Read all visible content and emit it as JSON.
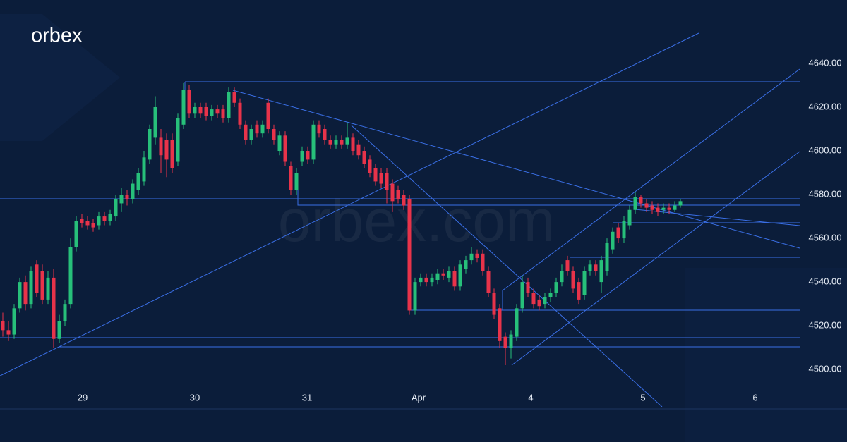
{
  "logo": "orbex",
  "watermark": "orbex.com",
  "chart_data": {
    "type": "candlestick",
    "x": [
      0,
      1,
      2,
      3,
      4,
      5,
      6,
      7,
      8,
      9,
      10,
      11,
      12,
      13,
      14,
      15,
      16,
      17,
      18,
      19,
      20,
      21,
      22,
      23,
      24,
      25,
      26,
      27,
      28,
      29,
      30,
      31,
      32,
      33,
      34,
      35,
      36,
      37,
      38,
      39,
      40,
      41,
      42,
      43,
      44,
      45,
      46,
      47,
      48,
      49,
      50,
      51,
      52,
      53,
      54,
      55,
      56,
      57,
      58,
      59,
      60,
      61,
      62,
      63,
      64,
      65,
      66,
      67,
      68,
      69,
      70,
      71,
      72,
      73,
      74,
      75,
      76,
      77,
      78,
      79,
      80,
      81,
      82,
      83,
      84,
      85,
      86,
      87,
      88,
      89,
      90,
      91,
      92,
      93,
      94,
      95,
      96,
      97,
      98,
      99,
      100,
      101,
      102,
      103,
      104,
      105,
      106,
      107,
      108,
      109,
      110,
      111,
      112,
      113,
      114,
      115,
      116,
      117,
      118,
      119,
      120
    ],
    "ohlc": [
      [
        4522,
        4526,
        4515,
        4518
      ],
      [
        4518,
        4522,
        4513,
        4516
      ],
      [
        4516,
        4530,
        4514,
        4528
      ],
      [
        4528,
        4542,
        4526,
        4540
      ],
      [
        4540,
        4543,
        4527,
        4530
      ],
      [
        4530,
        4547,
        4528,
        4545
      ],
      [
        4548,
        4550,
        4533,
        4535
      ],
      [
        4545,
        4548,
        4530,
        4532
      ],
      [
        4532,
        4545,
        4530,
        4542
      ],
      [
        4542,
        4546,
        4510,
        4514
      ],
      [
        4514,
        4525,
        4512,
        4522
      ],
      [
        4522,
        4532,
        4520,
        4530
      ],
      [
        4530,
        4560,
        4528,
        4556
      ],
      [
        4556,
        4570,
        4554,
        4568
      ],
      [
        4569,
        4571,
        4565,
        4567
      ],
      [
        4568,
        4570,
        4564,
        4566
      ],
      [
        4567,
        4569,
        4563,
        4565
      ],
      [
        4566,
        4572,
        4564,
        4570
      ],
      [
        4570,
        4572,
        4566,
        4568
      ],
      [
        4568,
        4573,
        4566,
        4571
      ],
      [
        4570,
        4580,
        4568,
        4578
      ],
      [
        4576,
        4583,
        4572,
        4580
      ],
      [
        4580,
        4582,
        4575,
        4578
      ],
      [
        4578,
        4587,
        4576,
        4585
      ],
      [
        4582,
        4592,
        4580,
        4590
      ],
      [
        4586,
        4600,
        4584,
        4597
      ],
      [
        4596,
        4612,
        4594,
        4610
      ],
      [
        4606,
        4625,
        4603,
        4620
      ],
      [
        4606,
        4610,
        4590,
        4598
      ],
      [
        4605,
        4608,
        4588,
        4596
      ],
      [
        4605,
        4608,
        4590,
        4592
      ],
      [
        4595,
        4617,
        4593,
        4615
      ],
      [
        4612,
        4631,
        4610,
        4628
      ],
      [
        4628,
        4630,
        4615,
        4617
      ],
      [
        4617,
        4622,
        4615,
        4620
      ],
      [
        4620,
        4622,
        4615,
        4617
      ],
      [
        4620,
        4622,
        4614,
        4616
      ],
      [
        4616,
        4621,
        4614,
        4619
      ],
      [
        4619,
        4621,
        4615,
        4617
      ],
      [
        4619,
        4621,
        4613,
        4615
      ],
      [
        4615,
        4629,
        4613,
        4627
      ],
      [
        4627,
        4629,
        4620,
        4622
      ],
      [
        4622,
        4624,
        4610,
        4612
      ],
      [
        4612,
        4614,
        4603,
        4605
      ],
      [
        4605,
        4612,
        4603,
        4610
      ],
      [
        4612,
        4614,
        4606,
        4608
      ],
      [
        4608,
        4614,
        4606,
        4612
      ],
      [
        4622,
        4624,
        4608,
        4610
      ],
      [
        4610,
        4612,
        4603,
        4605
      ],
      [
        4600,
        4609,
        4598,
        4607
      ],
      [
        4607,
        4609,
        4593,
        4595
      ],
      [
        4593,
        4595,
        4580,
        4582
      ],
      [
        4582,
        4592,
        4580,
        4590
      ],
      [
        4595,
        4602,
        4593,
        4600
      ],
      [
        4600,
        4602,
        4594,
        4596
      ],
      [
        4596,
        4614,
        4594,
        4612
      ],
      [
        4612,
        4614,
        4606,
        4608
      ],
      [
        4610,
        4612,
        4603,
        4605
      ],
      [
        4605,
        4607,
        4601,
        4603
      ],
      [
        4603,
        4607,
        4601,
        4605
      ],
      [
        4605,
        4607,
        4601,
        4603
      ],
      [
        4603,
        4613,
        4601,
        4606
      ],
      [
        4606,
        4608,
        4598,
        4600
      ],
      [
        4603,
        4605,
        4596,
        4598
      ],
      [
        4600,
        4602,
        4592,
        4594
      ],
      [
        4596,
        4598,
        4588,
        4590
      ],
      [
        4592,
        4594,
        4584,
        4586
      ],
      [
        4590,
        4592,
        4583,
        4585
      ],
      [
        4590,
        4592,
        4576,
        4582
      ],
      [
        4585,
        4587,
        4572,
        4577
      ],
      [
        4582,
        4584,
        4576,
        4578
      ],
      [
        4580,
        4582,
        4573,
        4575
      ],
      [
        4578,
        4580,
        4525,
        4527
      ],
      [
        4527,
        4542,
        4525,
        4540
      ],
      [
        4540,
        4544,
        4538,
        4542
      ],
      [
        4542,
        4544,
        4538,
        4540
      ],
      [
        4540,
        4544,
        4538,
        4542
      ],
      [
        4541,
        4546,
        4539,
        4544
      ],
      [
        4544,
        4546,
        4541,
        4543
      ],
      [
        4542,
        4547,
        4540,
        4545
      ],
      [
        4545,
        4547,
        4536,
        4538
      ],
      [
        4538,
        4550,
        4536,
        4548
      ],
      [
        4546,
        4552,
        4544,
        4550
      ],
      [
        4550,
        4556,
        4548,
        4553
      ],
      [
        4553,
        4555,
        4549,
        4551
      ],
      [
        4553,
        4555,
        4543,
        4545
      ],
      [
        4545,
        4547,
        4533,
        4535
      ],
      [
        4535,
        4537,
        4523,
        4525
      ],
      [
        4528,
        4530,
        4510,
        4513
      ],
      [
        4515,
        4517,
        4502,
        4510
      ],
      [
        4510,
        4518,
        4505,
        4516
      ],
      [
        4515,
        4530,
        4513,
        4528
      ],
      [
        4528,
        4543,
        4526,
        4540
      ],
      [
        4540,
        4542,
        4533,
        4535
      ],
      [
        4535,
        4537,
        4528,
        4530
      ],
      [
        4532,
        4534,
        4527,
        4529
      ],
      [
        4530,
        4535,
        4528,
        4533
      ],
      [
        4533,
        4537,
        4531,
        4535
      ],
      [
        4535,
        4542,
        4533,
        4540
      ],
      [
        4540,
        4548,
        4538,
        4545
      ],
      [
        4550,
        4552,
        4543,
        4545
      ],
      [
        4545,
        4547,
        4535,
        4537
      ],
      [
        4540,
        4542,
        4530,
        4532
      ],
      [
        4534,
        4547,
        4532,
        4545
      ],
      [
        4545,
        4550,
        4543,
        4548
      ],
      [
        4548,
        4550,
        4543,
        4545
      ],
      [
        4540,
        4552,
        4535,
        4550
      ],
      [
        4545,
        4560,
        4543,
        4558
      ],
      [
        4555,
        4565,
        4553,
        4563
      ],
      [
        4565,
        4567,
        4558,
        4560
      ],
      [
        4560,
        4570,
        4558,
        4568
      ],
      [
        4566,
        4575,
        4564,
        4573
      ],
      [
        4573,
        4581,
        4571,
        4579
      ],
      [
        4579,
        4580,
        4574,
        4576
      ],
      [
        4576,
        4578,
        4572,
        4574
      ],
      [
        4575,
        4577,
        4571,
        4573
      ],
      [
        4574,
        4576,
        4570,
        4572
      ],
      [
        4573,
        4576,
        4571,
        4574
      ],
      [
        4574,
        4576,
        4571,
        4573
      ],
      [
        4573,
        4577,
        4572,
        4575
      ],
      [
        4575,
        4578,
        4574,
        4577
      ]
    ],
    "up_color": "#27c07a",
    "down_color": "#e8334a",
    "xlim": [
      -0.5,
      149.5
    ],
    "xticks": [
      {
        "value": 14.125,
        "label": "29"
      },
      {
        "value": 34,
        "label": "30"
      },
      {
        "value": 53.875,
        "label": "31"
      },
      {
        "value": 73.625,
        "label": "Apr"
      },
      {
        "value": 93.5,
        "label": "4"
      },
      {
        "value": 113.375,
        "label": "5"
      },
      {
        "value": 133.25,
        "label": "6"
      }
    ],
    "ylim": [
      4482,
      4669
    ],
    "yticks": [
      {
        "value": 4500,
        "label": "4500.00"
      },
      {
        "value": 4520,
        "label": "4520.00"
      },
      {
        "value": 4540,
        "label": "4540.00"
      },
      {
        "value": 4560,
        "label": "4560.00"
      },
      {
        "value": 4580,
        "label": "4580.00"
      },
      {
        "value": 4600,
        "label": "4600.00"
      },
      {
        "value": 4620,
        "label": "4620.00"
      },
      {
        "value": 4640,
        "label": "4640.00"
      }
    ]
  }
}
